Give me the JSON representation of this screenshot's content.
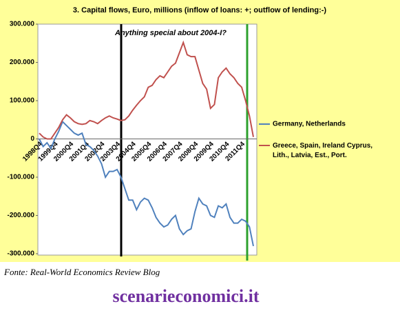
{
  "chart_data": {
    "type": "line",
    "title": "3. Capital flows, Euro, millions (inflow of loans: +; outflow of lending:-)",
    "annotation": "Anything special about 2004-I?",
    "categories": [
      "1998Q4",
      null,
      null,
      null,
      "1999Q4",
      null,
      null,
      null,
      "2000Q4",
      null,
      null,
      null,
      "2001Q4",
      null,
      null,
      null,
      "2002Q4",
      null,
      null,
      null,
      "2003Q4",
      null,
      null,
      null,
      "2004Q4",
      null,
      null,
      null,
      "2005Q4",
      null,
      null,
      null,
      "2006Q4",
      null,
      null,
      null,
      "2007Q4",
      null,
      null,
      null,
      "2008Q4",
      null,
      null,
      null,
      "2009Q4",
      null,
      null,
      null,
      "2010Q4",
      null,
      null,
      null,
      "2011Q4",
      null,
      null,
      null
    ],
    "series": [
      {
        "name": "Germany, Netherlands",
        "color": "#4f81bd",
        "values": [
          0,
          -20000,
          -10000,
          -25000,
          0,
          20000,
          45000,
          35000,
          25000,
          15000,
          10000,
          15000,
          -15000,
          -20000,
          -30000,
          -45000,
          -65000,
          -100000,
          -85000,
          -85000,
          -80000,
          -100000,
          -130000,
          -160000,
          -160000,
          -185000,
          -165000,
          -155000,
          -160000,
          -180000,
          -205000,
          -220000,
          -230000,
          -225000,
          -210000,
          -200000,
          -235000,
          -250000,
          -240000,
          -235000,
          -190000,
          -155000,
          -170000,
          -175000,
          -200000,
          -205000,
          -175000,
          -180000,
          -170000,
          -205000,
          -220000,
          -220000,
          -210000,
          -215000,
          -230000,
          -280000
        ]
      },
      {
        "name": "Greece, Spain, Ireland Cyprus, Lith., Latvia, Est., Port.",
        "color": "#c0504d",
        "values": [
          15000,
          5000,
          0,
          0,
          15000,
          30000,
          50000,
          63000,
          55000,
          45000,
          40000,
          38000,
          40000,
          48000,
          45000,
          40000,
          48000,
          55000,
          60000,
          55000,
          52000,
          48000,
          50000,
          60000,
          75000,
          88000,
          100000,
          110000,
          135000,
          140000,
          155000,
          165000,
          160000,
          175000,
          190000,
          198000,
          225000,
          252000,
          220000,
          215000,
          215000,
          180000,
          145000,
          130000,
          80000,
          90000,
          160000,
          175000,
          185000,
          170000,
          160000,
          145000,
          135000,
          100000,
          60000,
          5000
        ]
      }
    ],
    "ylim": [
      -300000,
      300000
    ],
    "yticks": [
      {
        "value": 300000,
        "label": "300.000"
      },
      {
        "value": 200000,
        "label": "200.000"
      },
      {
        "value": 100000,
        "label": "100.000"
      },
      0,
      {
        "value": -100000,
        "label": "-100.000"
      },
      {
        "value": -200000,
        "label": "-200.000"
      },
      {
        "value": -300000,
        "label": "-300.000"
      }
    ]
  },
  "source": "Fonte: Real-World Economics Review Blog",
  "watermark": "scenarieconomici.it"
}
